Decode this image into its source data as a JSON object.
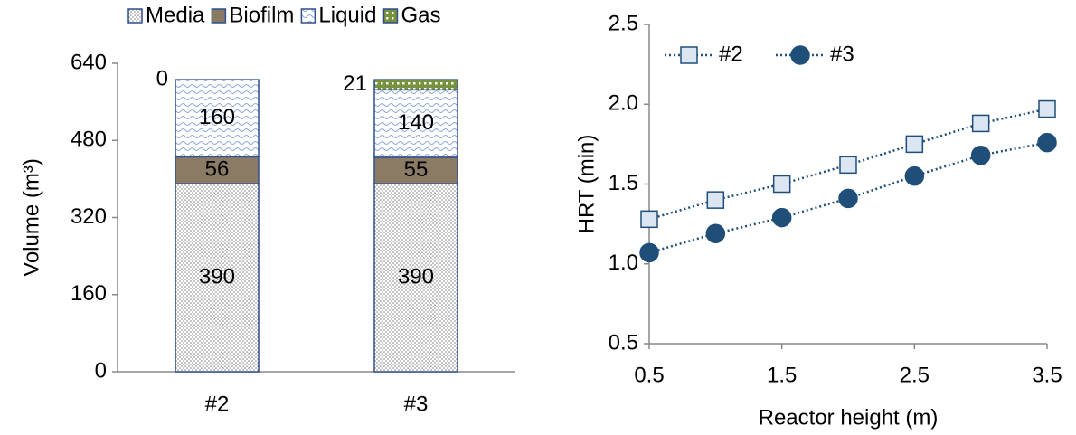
{
  "chart_data": [
    {
      "type": "bar",
      "stacked": true,
      "categories": [
        "#2",
        "#3"
      ],
      "series": [
        {
          "name": "Media",
          "color": "#7f7f7f",
          "pattern": "dots",
          "values": [
            390,
            390
          ]
        },
        {
          "name": "Biofilm",
          "color": "#8b7b65",
          "pattern": "solid",
          "values": [
            56,
            55
          ]
        },
        {
          "name": "Liquid",
          "color": "#8ea9db",
          "pattern": "waves",
          "values": [
            160,
            140
          ]
        },
        {
          "name": "Gas",
          "color": "#76923c",
          "pattern": "checks",
          "values": [
            0,
            21
          ]
        }
      ],
      "ylabel": "Volume (m³)",
      "ylim": [
        0,
        640
      ],
      "yticks": [
        0,
        160,
        320,
        480,
        640
      ],
      "legend": "top"
    },
    {
      "type": "line",
      "x": [
        0.5,
        1,
        1.5,
        2,
        2.5,
        3,
        3.5
      ],
      "series": [
        {
          "name": "#2",
          "color": "#dce6f2",
          "marker": "square",
          "values": [
            1.28,
            1.4,
            1.5,
            1.62,
            1.75,
            1.88,
            1.97
          ]
        },
        {
          "name": "#3",
          "color": "#1f4e79",
          "marker": "circle",
          "values": [
            1.07,
            1.19,
            1.29,
            1.41,
            1.55,
            1.68,
            1.76
          ]
        }
      ],
      "xlabel": "Reactor height (m)",
      "ylabel": "HRT (min)",
      "xlim": [
        0.5,
        3.5
      ],
      "xticks": [
        0.5,
        1.5,
        2.5,
        3.5
      ],
      "ylim": [
        0.5,
        2.5
      ],
      "yticks": [
        0.5,
        {
          "value": 1,
          "label": "1.0"
        },
        1.5,
        {
          "value": 2,
          "label": "2.0"
        },
        2.5
      ],
      "legend": "upper left"
    }
  ]
}
